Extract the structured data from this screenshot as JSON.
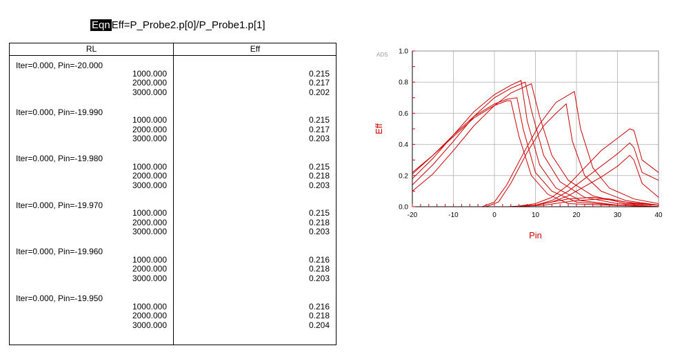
{
  "equation": {
    "tag": "Eqn",
    "text": "Eff=P_Probe2.p[0]/P_Probe1.p[1]"
  },
  "table": {
    "col1_header": "RL",
    "col2_header": "Eff",
    "groups": [
      {
        "label": "Iter=0.000, Pin=-20.000",
        "rows": [
          {
            "rl": "1000.000",
            "eff": "0.215"
          },
          {
            "rl": "2000.000",
            "eff": "0.217"
          },
          {
            "rl": "3000.000",
            "eff": "0.202"
          }
        ]
      },
      {
        "label": "Iter=0.000, Pin=-19.990",
        "rows": [
          {
            "rl": "1000.000",
            "eff": "0.215"
          },
          {
            "rl": "2000.000",
            "eff": "0.217"
          },
          {
            "rl": "3000.000",
            "eff": "0.203"
          }
        ]
      },
      {
        "label": "Iter=0.000, Pin=-19.980",
        "rows": [
          {
            "rl": "1000.000",
            "eff": "0.215"
          },
          {
            "rl": "2000.000",
            "eff": "0.218"
          },
          {
            "rl": "3000.000",
            "eff": "0.203"
          }
        ]
      },
      {
        "label": "Iter=0.000, Pin=-19.970",
        "rows": [
          {
            "rl": "1000.000",
            "eff": "0.215"
          },
          {
            "rl": "2000.000",
            "eff": "0.218"
          },
          {
            "rl": "3000.000",
            "eff": "0.203"
          }
        ]
      },
      {
        "label": "Iter=0.000, Pin=-19.960",
        "rows": [
          {
            "rl": "1000.000",
            "eff": "0.216"
          },
          {
            "rl": "2000.000",
            "eff": "0.218"
          },
          {
            "rl": "3000.000",
            "eff": "0.203"
          }
        ]
      },
      {
        "label": "Iter=0.000, Pin=-19.950",
        "rows": [
          {
            "rl": "1000.000",
            "eff": "0.216"
          },
          {
            "rl": "2000.000",
            "eff": "0.218"
          },
          {
            "rl": "3000.000",
            "eff": "0.204"
          }
        ]
      }
    ]
  },
  "chart_data": {
    "type": "line",
    "watermark": "ADS",
    "xlabel": "Pin",
    "ylabel": "Eff",
    "xlim": [
      -20,
      40
    ],
    "ylim": [
      0,
      1.0
    ],
    "xticks": [
      -20,
      -10,
      0,
      10,
      20,
      30,
      40
    ],
    "yticks": [
      0.0,
      0.2,
      0.4,
      0.6,
      0.8,
      1.0
    ],
    "ytick_labels": [
      "0.0",
      "0.2",
      "0.4",
      "0.6",
      "0.8",
      "1.0"
    ],
    "grid": true,
    "line_color": "#cc0000",
    "label_color": "#cc0000",
    "series": [
      {
        "x": [
          -20,
          -15,
          -10,
          -5,
          0,
          3,
          5.5,
          7,
          10,
          14,
          20,
          30,
          40
        ],
        "y": [
          0.22,
          0.33,
          0.46,
          0.58,
          0.66,
          0.69,
          0.7,
          0.5,
          0.22,
          0.1,
          0.03,
          0.01,
          0.0
        ]
      },
      {
        "x": [
          -20,
          -15,
          -10,
          -5,
          0,
          3,
          4,
          6,
          9,
          13,
          18,
          28,
          40
        ],
        "y": [
          0.21,
          0.33,
          0.45,
          0.57,
          0.65,
          0.68,
          0.68,
          0.45,
          0.2,
          0.08,
          0.02,
          0.01,
          0.0
        ]
      },
      {
        "x": [
          -20,
          -15,
          -10,
          -5,
          0,
          4,
          6.5,
          8,
          11,
          15,
          21,
          30,
          40
        ],
        "y": [
          0.18,
          0.31,
          0.46,
          0.61,
          0.72,
          0.78,
          0.81,
          0.55,
          0.27,
          0.12,
          0.04,
          0.01,
          0.0
        ]
      },
      {
        "x": [
          -20,
          -15,
          -10,
          -5,
          0,
          4,
          7.5,
          9,
          12,
          16,
          22,
          30,
          40
        ],
        "y": [
          0.14,
          0.27,
          0.42,
          0.58,
          0.7,
          0.76,
          0.8,
          0.62,
          0.33,
          0.16,
          0.06,
          0.02,
          0.0
        ]
      },
      {
        "x": [
          -20,
          -15,
          -10,
          -5,
          0,
          4,
          9,
          11,
          14,
          18,
          24,
          32,
          40
        ],
        "y": [
          0.1,
          0.21,
          0.36,
          0.52,
          0.65,
          0.73,
          0.79,
          0.58,
          0.33,
          0.17,
          0.07,
          0.02,
          0.01
        ]
      },
      {
        "x": [
          -3,
          0,
          3,
          7,
          11,
          15,
          19.5,
          21,
          24,
          28,
          34,
          40
        ],
        "y": [
          0.0,
          0.03,
          0.14,
          0.34,
          0.53,
          0.67,
          0.74,
          0.5,
          0.25,
          0.12,
          0.05,
          0.02
        ]
      },
      {
        "x": [
          -2,
          1,
          4,
          8,
          12,
          15,
          17.5,
          19,
          22,
          26,
          32,
          40
        ],
        "y": [
          0.0,
          0.03,
          0.15,
          0.35,
          0.52,
          0.6,
          0.66,
          0.42,
          0.2,
          0.1,
          0.04,
          0.01
        ]
      },
      {
        "x": [
          -20,
          -10,
          0,
          5,
          10,
          14,
          18,
          22,
          26,
          30,
          33,
          34,
          36,
          40
        ],
        "y": [
          0.0,
          0.0,
          0.0,
          0.0,
          0.02,
          0.06,
          0.14,
          0.25,
          0.36,
          0.44,
          0.5,
          0.49,
          0.3,
          0.22
        ]
      },
      {
        "x": [
          -20,
          -10,
          0,
          5,
          10,
          14,
          18,
          22,
          26,
          30,
          33,
          34,
          36,
          40
        ],
        "y": [
          0.0,
          0.0,
          0.0,
          0.0,
          0.01,
          0.04,
          0.1,
          0.18,
          0.26,
          0.34,
          0.41,
          0.38,
          0.22,
          0.17
        ]
      },
      {
        "x": [
          -20,
          -10,
          0,
          5,
          10,
          14,
          18,
          22,
          26,
          30,
          33,
          34,
          36,
          40
        ],
        "y": [
          0.0,
          0.0,
          0.0,
          0.0,
          0.01,
          0.03,
          0.07,
          0.13,
          0.19,
          0.26,
          0.33,
          0.3,
          0.15,
          0.06
        ]
      },
      {
        "x": [
          3,
          10,
          18,
          24,
          28,
          32,
          36,
          40
        ],
        "y": [
          0.0,
          0.01,
          0.05,
          0.06,
          0.05,
          0.03,
          0.02,
          0.01
        ]
      },
      {
        "x": [
          5,
          12,
          20,
          26,
          30,
          34,
          40
        ],
        "y": [
          0.0,
          0.01,
          0.04,
          0.05,
          0.04,
          0.02,
          0.01
        ]
      }
    ]
  }
}
